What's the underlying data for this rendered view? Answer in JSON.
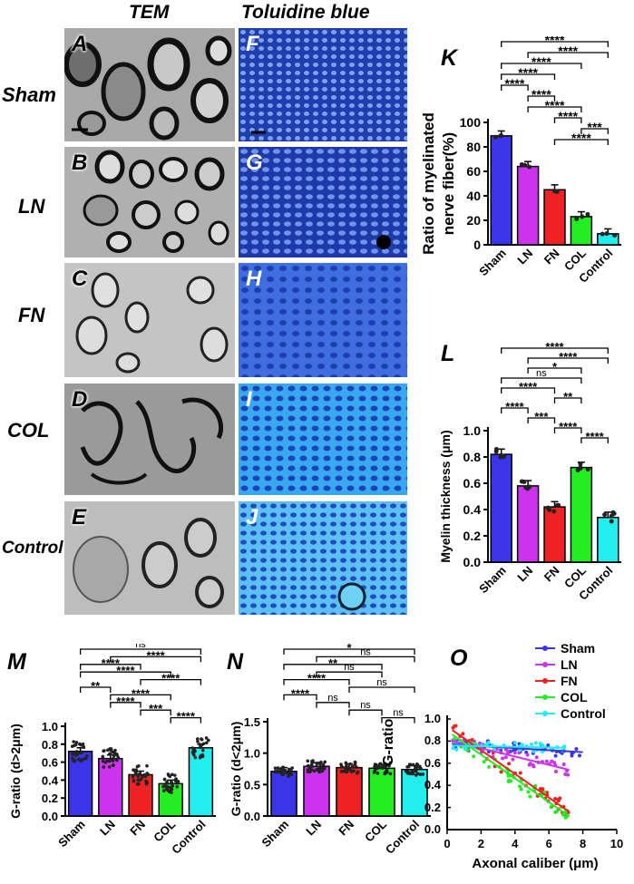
{
  "headers": {
    "tem": "TEM",
    "tb": "Toluidine blue"
  },
  "rows": [
    {
      "label": "Sham",
      "tem_letter": "A",
      "tb_letter": "F"
    },
    {
      "label": "LN",
      "tem_letter": "B",
      "tb_letter": "G"
    },
    {
      "label": "FN",
      "tem_letter": "C",
      "tb_letter": "H"
    },
    {
      "label": "COL",
      "tem_letter": "D",
      "tb_letter": "I"
    },
    {
      "label": "Control",
      "tem_letter": "E",
      "tb_letter": "J"
    }
  ],
  "colors": {
    "Sham": "#3a35e8",
    "LN": "#cc33ee",
    "FN": "#ee2222",
    "COL": "#22ee22",
    "Control": "#22eeee"
  },
  "chart_data": [
    {
      "panel": "K",
      "type": "bar",
      "categories": [
        "Sham",
        "LN",
        "FN",
        "COL",
        "Control"
      ],
      "values": [
        89,
        64,
        45,
        23,
        9
      ],
      "ylabel": "Ratio of myelinated nerve fiber(%)",
      "ylabel_lines": [
        "Ratio of myelinated",
        "nerve fiber(%)"
      ],
      "ylim": [
        0,
        100
      ],
      "yticks": [
        0,
        20,
        40,
        60,
        80,
        100
      ],
      "significance": [
        {
          "a": 0,
          "b": 4,
          "text": "****"
        },
        {
          "a": 1,
          "b": 4,
          "text": "****"
        },
        {
          "a": 0,
          "b": 3,
          "text": "****"
        },
        {
          "a": 0,
          "b": 2,
          "text": "****"
        },
        {
          "a": 0,
          "b": 1,
          "text": "****"
        },
        {
          "a": 1,
          "b": 2,
          "text": "****"
        },
        {
          "a": 1,
          "b": 3,
          "text": "****"
        },
        {
          "a": 2,
          "b": 3,
          "text": "****"
        },
        {
          "a": 3,
          "b": 4,
          "text": "***"
        },
        {
          "a": 2,
          "b": 4,
          "text": "****"
        }
      ]
    },
    {
      "panel": "L",
      "type": "bar",
      "categories": [
        "Sham",
        "LN",
        "FN",
        "COL",
        "Control"
      ],
      "values": [
        0.82,
        0.58,
        0.42,
        0.72,
        0.34
      ],
      "ylabel": "Myelin thickness (μm)",
      "ylim": [
        0,
        1.0
      ],
      "yticks": [
        "0.0",
        "0.2",
        "0.4",
        "0.6",
        "0.8",
        "1.0"
      ],
      "significance": [
        {
          "a": 0,
          "b": 4,
          "text": "****"
        },
        {
          "a": 1,
          "b": 4,
          "text": "****"
        },
        {
          "a": 1,
          "b": 3,
          "text": "*"
        },
        {
          "a": 0,
          "b": 3,
          "text": "ns"
        },
        {
          "a": 0,
          "b": 2,
          "text": "****"
        },
        {
          "a": 2,
          "b": 3,
          "text": "**"
        },
        {
          "a": 0,
          "b": 1,
          "text": "****"
        },
        {
          "a": 1,
          "b": 2,
          "text": "***"
        },
        {
          "a": 2,
          "b": 3,
          "text": "****"
        },
        {
          "a": 3,
          "b": 4,
          "text": "****"
        }
      ]
    },
    {
      "panel": "M",
      "type": "bar",
      "categories": [
        "Sham",
        "LN",
        "FN",
        "COL",
        "Control"
      ],
      "values": [
        0.72,
        0.64,
        0.46,
        0.36,
        0.76
      ],
      "ylabel": "G-ratio (d>2μm)",
      "ylim": [
        0,
        1.0
      ],
      "yticks": [
        "0.0",
        "0.2",
        "0.4",
        "0.6",
        "0.8",
        "1.0"
      ],
      "significance": [
        {
          "a": 0,
          "b": 4,
          "text": "ns"
        },
        {
          "a": 1,
          "b": 4,
          "text": "****"
        },
        {
          "a": 0,
          "b": 2,
          "text": "****"
        },
        {
          "a": 0,
          "b": 3,
          "text": "****"
        },
        {
          "a": 2,
          "b": 4,
          "text": "****"
        },
        {
          "a": 0,
          "b": 1,
          "text": "**"
        },
        {
          "a": 1,
          "b": 3,
          "text": "****"
        },
        {
          "a": 1,
          "b": 2,
          "text": "****"
        },
        {
          "a": 2,
          "b": 3,
          "text": "***"
        },
        {
          "a": 3,
          "b": 4,
          "text": "****"
        }
      ]
    },
    {
      "panel": "N",
      "type": "bar",
      "categories": [
        "Sham",
        "LN",
        "FN",
        "COL",
        "Control"
      ],
      "values": [
        0.71,
        0.79,
        0.77,
        0.76,
        0.74
      ],
      "ylabel": "G-ratio (d<2μm)",
      "ylim": [
        0,
        1.5
      ],
      "yticks": [
        "0.0",
        "0.5",
        "1.0",
        "1.5"
      ],
      "significance": [
        {
          "a": 0,
          "b": 4,
          "text": "*"
        },
        {
          "a": 1,
          "b": 4,
          "text": "ns"
        },
        {
          "a": 0,
          "b": 3,
          "text": "**"
        },
        {
          "a": 1,
          "b": 3,
          "text": "ns"
        },
        {
          "a": 0,
          "b": 2,
          "text": "****"
        },
        {
          "a": 2,
          "b": 4,
          "text": "ns"
        },
        {
          "a": 0,
          "b": 1,
          "text": "****"
        },
        {
          "a": 1,
          "b": 2,
          "text": "ns"
        },
        {
          "a": 2,
          "b": 3,
          "text": "ns"
        },
        {
          "a": 3,
          "b": 4,
          "text": "ns"
        }
      ]
    },
    {
      "panel": "O",
      "type": "scatter",
      "xlabel": "Axonal caliber  (μm)",
      "ylabel": "G-ratio",
      "xlim": [
        0,
        10
      ],
      "ylim": [
        0,
        1.0
      ],
      "xticks": [
        "0",
        "2",
        "4",
        "6",
        "8",
        "10"
      ],
      "yticks": [
        "0.0",
        "0.2",
        "0.4",
        "0.6",
        "0.8",
        "1.0"
      ],
      "legend_position": "top-right",
      "series": [
        {
          "name": "Sham",
          "fit": [
            [
              0.3,
              0.77
            ],
            [
              8,
              0.7
            ]
          ],
          "xrange": [
            0.3,
            8
          ],
          "ycenter": "fit",
          "spread": 0.05
        },
        {
          "name": "LN",
          "fit": [
            [
              0.3,
              0.8
            ],
            [
              7.2,
              0.54
            ]
          ],
          "xrange": [
            0.3,
            7.2
          ],
          "ycenter": "fit",
          "spread": 0.05
        },
        {
          "name": "FN",
          "fit": [
            [
              0.3,
              0.9
            ],
            [
              7.2,
              0.16
            ]
          ],
          "xrange": [
            0.3,
            7.2
          ],
          "ycenter": "fit",
          "spread": 0.07
        },
        {
          "name": "COL",
          "fit": [
            [
              0.3,
              0.86
            ],
            [
              7.2,
              0.12
            ]
          ],
          "xrange": [
            0.3,
            7.2
          ],
          "ycenter": "fit",
          "spread": 0.07
        },
        {
          "name": "Control",
          "fit": [
            [
              0.3,
              0.76
            ],
            [
              7,
              0.74
            ]
          ],
          "xrange": [
            0.3,
            7
          ],
          "ycenter": "fit",
          "spread": 0.04
        }
      ]
    }
  ]
}
